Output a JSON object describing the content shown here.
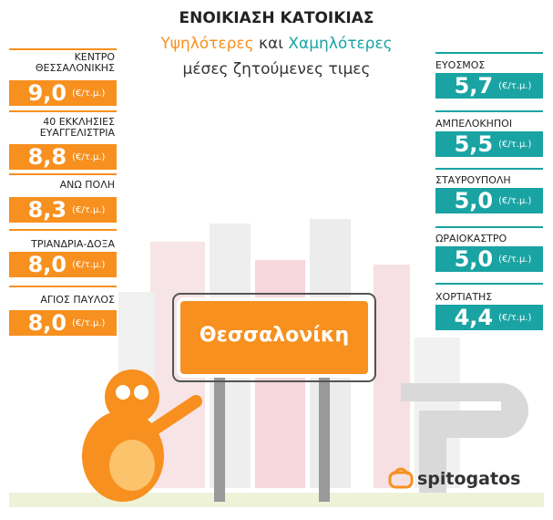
{
  "header": {
    "title": "ΕΝΟΙΚΙΑΣΗ ΚΑΤΟΙΚΙΑΣ",
    "highest": "Υψηλότερες",
    "and": "και",
    "lowest": "Χαμηλότερες",
    "subtitle": "μέσες ζητούμενες τιμες"
  },
  "highest": [
    {
      "label": "ΚΕΝΤΡΟ\nΘΕΣΣΑΛΟΝΙΚΗΣ",
      "value": "9,0",
      "unit": "(€/τ.μ.)"
    },
    {
      "label": "40 ΕΚΚΛΗΣΙΕΣ\nΕΥΑΓΓΕΛΙΣΤΡΙΑ",
      "value": "8,8",
      "unit": "(€/τ.μ.)"
    },
    {
      "label": "ΑΝΩ ΠΟΛΗ",
      "value": "8,3",
      "unit": "(€/τ.μ.)"
    },
    {
      "label": "ΤΡΙΑΝΔΡΙΑ-ΔΟΞΑ",
      "value": "8,0",
      "unit": "(€/τ.μ.)"
    },
    {
      "label": "ΑΓΙΟΣ ΠΑΥΛΟΣ",
      "value": "8,0",
      "unit": "(€/τ.μ.)"
    }
  ],
  "lowest": [
    {
      "label": "ΕΥΟΣΜΟΣ",
      "value": "5,7",
      "unit": "(€/τ.μ.)"
    },
    {
      "label": "ΑΜΠΕΛΟΚΗΠΟΙ",
      "value": "5,5",
      "unit": "(€/τ.μ.)"
    },
    {
      "label": "ΣΤΑΥΡΟΥΠΟΛΗ",
      "value": "5,0",
      "unit": "(€/τ.μ.)"
    },
    {
      "label": "ΩΡΑΙΟΚΑΣΤΡΟ",
      "value": "5,0",
      "unit": "(€/τ.μ.)"
    },
    {
      "label": "ΧΟΡΤΙΑΤΗΣ",
      "value": "4,4",
      "unit": "(€/τ.μ.)"
    }
  ],
  "sign": "Θεσσαλονίκη",
  "logo": "spitogatos"
}
